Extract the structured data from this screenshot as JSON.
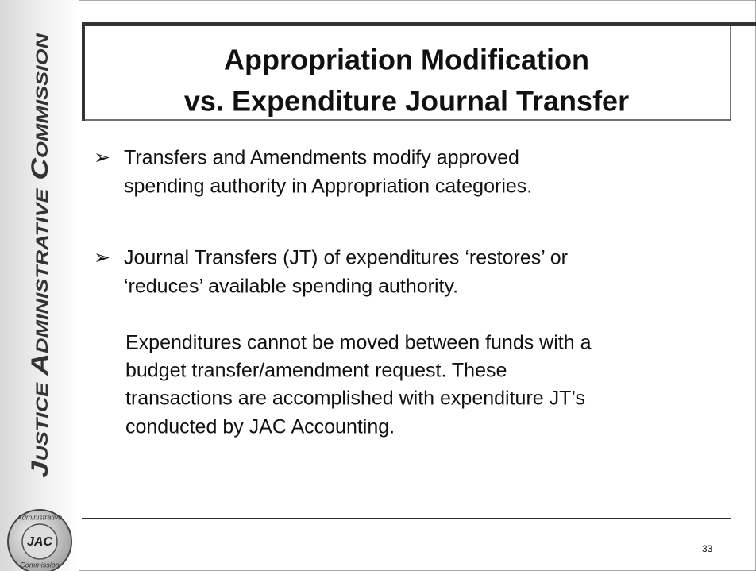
{
  "sidebar": {
    "text": "Justice Administrative Commission"
  },
  "title": {
    "lines": [
      "Appropriation Modification",
      "vs. Expenditure Journal Transfer"
    ]
  },
  "bullets": [
    {
      "lines": [
        "Transfers and Amendments modify approved",
        "spending authority in Appropriation categories."
      ]
    },
    {
      "lines": [
        "Journal Transfers (JT) of expenditures ‘restores’ or",
        "‘reduces’ available spending authority."
      ]
    }
  ],
  "paragraph": {
    "lines": [
      "Expenditures cannot be moved between funds with a",
      "budget transfer/amendment request. These",
      "transactions are accomplished with expenditure JT’s",
      "conducted by JAC Accounting."
    ]
  },
  "seal": {
    "top": "Administrative",
    "center": "JAC",
    "bottom": "Commission"
  },
  "page_number": "33"
}
